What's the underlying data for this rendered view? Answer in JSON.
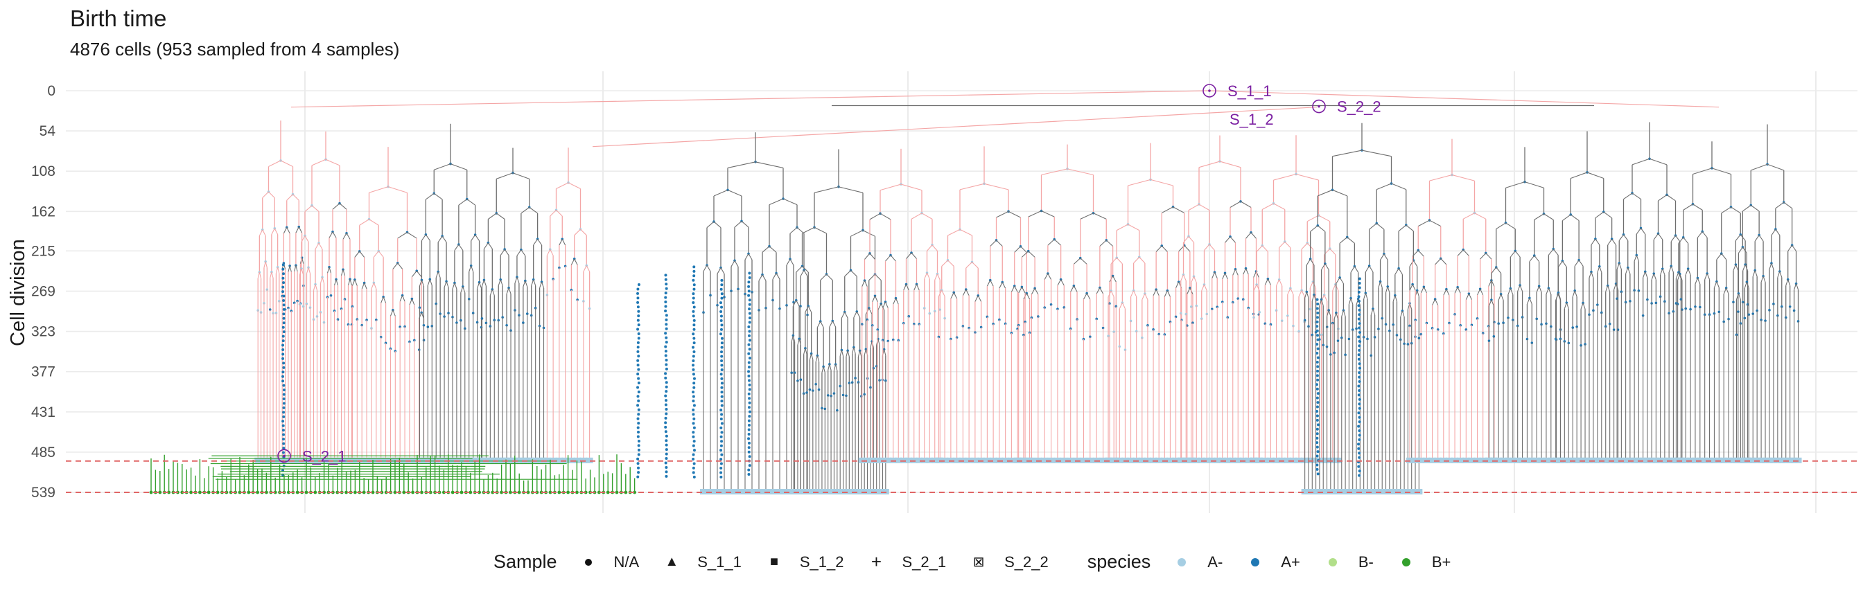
{
  "chart_data": {
    "type": "tree",
    "title": "Birth time",
    "subtitle": "4876 cells (953 sampled from 4 samples)",
    "ylabel": "Cell division",
    "y_ticks": [
      0,
      54,
      108,
      162,
      215,
      269,
      323,
      377,
      431,
      485,
      539
    ],
    "ylim": [
      0,
      539
    ],
    "y_reversed": true,
    "grid": true,
    "reference_lines": [
      {
        "y": 497,
        "style": "dashed",
        "color": "#e06666"
      },
      {
        "y": 539,
        "style": "dashed",
        "color": "#e06666"
      }
    ],
    "samples": [
      {
        "label": "S_1_1",
        "y": 0
      },
      {
        "label": "S_2_2",
        "y": 21
      },
      {
        "label": "S_1_2",
        "y": 38
      },
      {
        "label": "S_2_1",
        "y": 490
      }
    ],
    "legend_placement": "bottom",
    "legend": {
      "sample_title": "Sample",
      "sample_items": [
        {
          "label": "N/A",
          "shape": "circle"
        },
        {
          "label": "S_1_1",
          "shape": "triangle"
        },
        {
          "label": "S_1_2",
          "shape": "square"
        },
        {
          "label": "S_2_1",
          "shape": "plus"
        },
        {
          "label": "S_2_2",
          "shape": "boxed-x"
        }
      ],
      "species_title": "species",
      "species_items": [
        {
          "label": "A-",
          "color": "#a6cee3"
        },
        {
          "label": "A+",
          "color": "#1f78b4"
        },
        {
          "label": "B-",
          "color": "#b2df8a"
        },
        {
          "label": "B+",
          "color": "#33a02c"
        }
      ]
    },
    "colors": {
      "edge_grey": "#6e6e6e",
      "edge_pink": "#f4a6a6",
      "sample_marker": "#7b1fa2",
      "grid": "#ebebeb"
    }
  }
}
